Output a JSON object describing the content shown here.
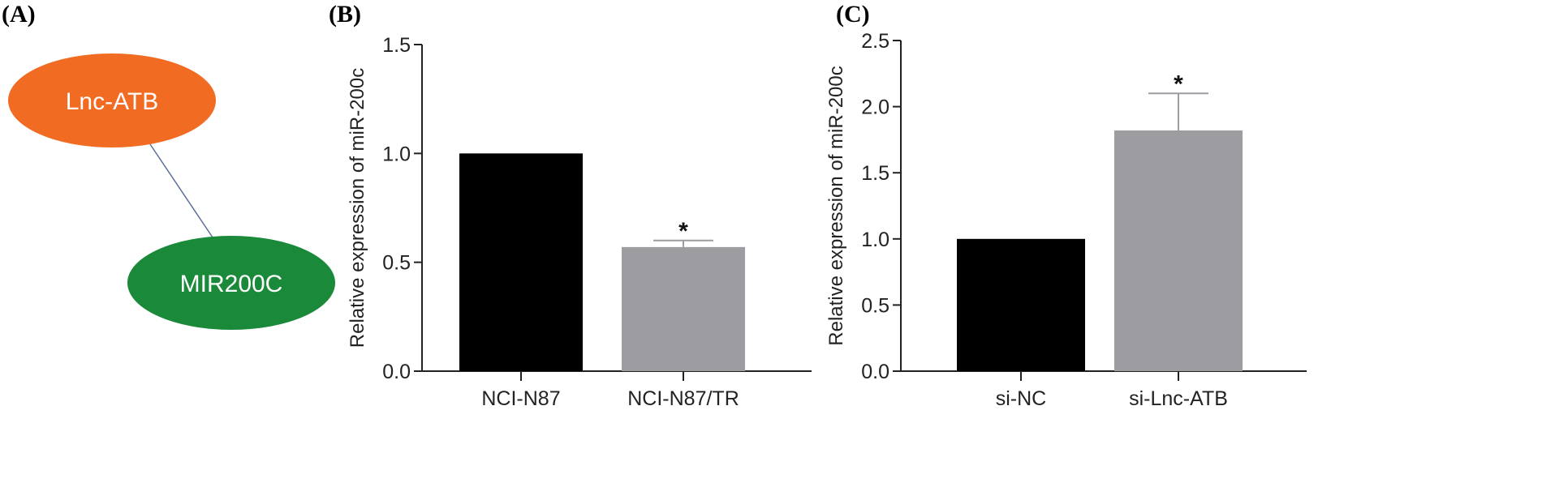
{
  "panels": {
    "a": {
      "label": "(A)",
      "nodes": [
        {
          "name": "Lnc-ATB",
          "color": "#f26b22"
        },
        {
          "name": "MIR200C",
          "color": "#1a8a3a"
        }
      ],
      "edge_color": "#5b6f96"
    },
    "b": {
      "label": "(B)"
    },
    "c": {
      "label": "(C)"
    }
  },
  "chart_data": [
    {
      "type": "bar",
      "panel": "B",
      "title": "",
      "xlabel": "",
      "ylabel": "Relative expression of miR-200c",
      "ylim": [
        0,
        1.5
      ],
      "yticks": [
        "0.0",
        "0.5",
        "1.0",
        "1.5"
      ],
      "categories": [
        "NCI-N87",
        "NCI-N87/TR"
      ],
      "values": [
        1.0,
        0.57
      ],
      "errors": [
        0,
        0.03
      ],
      "significance": [
        "",
        "*"
      ],
      "colors": [
        "#000000",
        "#9d9ca1"
      ]
    },
    {
      "type": "bar",
      "panel": "C",
      "title": "",
      "xlabel": "",
      "ylabel": "Relative expression of miR-200c",
      "ylim": [
        0,
        2.5
      ],
      "yticks": [
        "0.0",
        "0.5",
        "1.0",
        "1.5",
        "2.0",
        "2.5"
      ],
      "categories": [
        "si-NC",
        "si-Lnc-ATB"
      ],
      "values": [
        1.0,
        1.82
      ],
      "errors": [
        0,
        0.28
      ],
      "significance": [
        "",
        "*"
      ],
      "colors": [
        "#000000",
        "#9d9ca1"
      ]
    }
  ]
}
